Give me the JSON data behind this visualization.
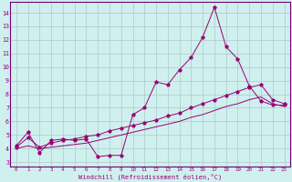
{
  "xlabel": "Windchill (Refroidissement éolien,°C)",
  "bg_color": "#cff0ee",
  "grid_color": "#b0d0cc",
  "line_color": "#990077",
  "spine_color": "#770077",
  "xlim": [
    -0.5,
    23.5
  ],
  "ylim": [
    2.7,
    14.8
  ],
  "xticks": [
    0,
    1,
    2,
    3,
    4,
    5,
    6,
    7,
    8,
    9,
    10,
    11,
    12,
    13,
    14,
    15,
    16,
    17,
    18,
    19,
    20,
    21,
    22,
    23
  ],
  "yticks": [
    3,
    4,
    5,
    6,
    7,
    8,
    9,
    10,
    11,
    12,
    13,
    14
  ],
  "series1_x": [
    0,
    1,
    2,
    3,
    4,
    5,
    6,
    7,
    8,
    9,
    10,
    11,
    12,
    13,
    14,
    15,
    16,
    17,
    18,
    19,
    20,
    21,
    22,
    23
  ],
  "series1_y": [
    4.2,
    5.2,
    3.7,
    4.6,
    4.7,
    4.6,
    4.7,
    3.4,
    3.5,
    3.5,
    6.5,
    7.0,
    8.9,
    8.7,
    9.8,
    10.7,
    12.2,
    14.4,
    11.5,
    10.6,
    8.6,
    7.5,
    7.2,
    7.2
  ],
  "series2_x": [
    0,
    1,
    2,
    3,
    4,
    5,
    6,
    7,
    8,
    9,
    10,
    11,
    12,
    13,
    14,
    15,
    16,
    17,
    18,
    19,
    20,
    21,
    22,
    23
  ],
  "series2_y": [
    4.1,
    4.8,
    4.1,
    4.4,
    4.6,
    4.7,
    4.9,
    5.0,
    5.3,
    5.5,
    5.7,
    5.9,
    6.1,
    6.4,
    6.6,
    7.0,
    7.3,
    7.6,
    7.9,
    8.2,
    8.5,
    8.7,
    7.6,
    7.3
  ],
  "series3_x": [
    0,
    1,
    2,
    3,
    4,
    5,
    6,
    7,
    8,
    9,
    10,
    11,
    12,
    13,
    14,
    15,
    16,
    17,
    18,
    19,
    20,
    21,
    22,
    23
  ],
  "series3_y": [
    4.0,
    4.2,
    4.0,
    4.1,
    4.2,
    4.3,
    4.4,
    4.6,
    4.8,
    5.0,
    5.2,
    5.4,
    5.6,
    5.8,
    6.0,
    6.3,
    6.5,
    6.8,
    7.1,
    7.3,
    7.6,
    7.8,
    7.3,
    7.1
  ]
}
